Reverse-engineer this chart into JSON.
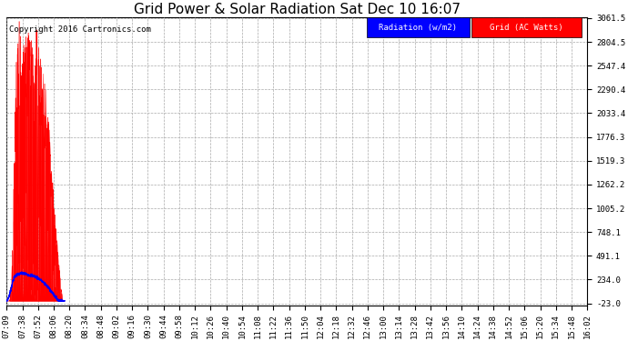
{
  "title": "Grid Power & Solar Radiation Sat Dec 10 16:07",
  "copyright": "Copyright 2016 Cartronics.com",
  "legend_radiation": "Radiation (w/m2)",
  "legend_grid": "Grid (AC Watts)",
  "radiation_color": "#0000ff",
  "grid_color": "#ff0000",
  "background_color": "#ffffff",
  "plot_bg_color": "#ffffff",
  "y_min": -23.0,
  "y_max": 3061.5,
  "yticks": [
    -23.0,
    234.0,
    491.1,
    748.1,
    1005.2,
    1262.2,
    1519.3,
    1776.3,
    2033.4,
    2290.4,
    2547.4,
    2804.5,
    3061.5
  ],
  "x_labels": [
    "07:09",
    "07:38",
    "07:52",
    "08:06",
    "08:20",
    "08:34",
    "08:48",
    "09:02",
    "09:16",
    "09:30",
    "09:44",
    "09:58",
    "10:12",
    "10:26",
    "10:40",
    "10:54",
    "11:08",
    "11:22",
    "11:36",
    "11:50",
    "12:04",
    "12:18",
    "12:32",
    "12:46",
    "13:00",
    "13:14",
    "13:28",
    "13:42",
    "13:56",
    "14:10",
    "14:24",
    "14:38",
    "14:52",
    "15:06",
    "15:20",
    "15:34",
    "15:48",
    "16:02"
  ],
  "title_fontsize": 11,
  "axis_fontsize": 6.5,
  "copyright_fontsize": 6.5,
  "grid_color_line": "#aaaaaa",
  "grid_linestyle": "--",
  "grid_power_envelope": [
    0,
    0,
    50,
    200,
    800,
    1800,
    2600,
    2900,
    3061,
    2800,
    2600,
    2900,
    3061,
    2800,
    3000,
    2900,
    3061,
    2700,
    2800,
    3000,
    2900,
    2600,
    2700,
    2500,
    2400,
    2300,
    2100,
    1900,
    1600,
    1400,
    1200,
    1000,
    800,
    500,
    300,
    100,
    0,
    0
  ],
  "radiation_envelope": [
    0,
    30,
    80,
    150,
    220,
    260,
    280,
    290,
    295,
    300,
    300,
    298,
    295,
    290,
    285,
    282,
    280,
    275,
    268,
    260,
    250,
    238,
    225,
    210,
    195,
    178,
    160,
    140,
    118,
    95,
    70,
    48,
    25,
    10,
    3,
    0,
    0,
    0
  ]
}
